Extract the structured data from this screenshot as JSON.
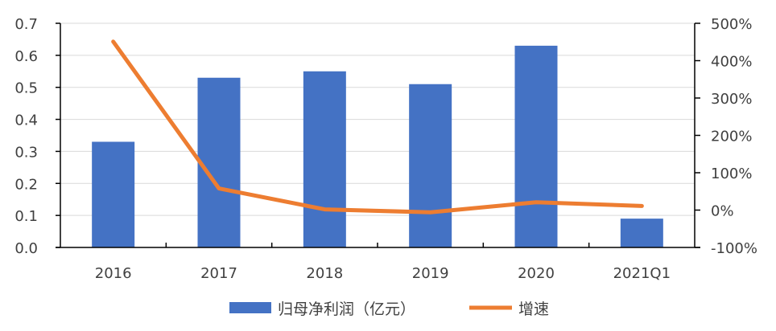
{
  "chart_data": {
    "type": "bar+line",
    "title": "",
    "categories": [
      "2016",
      "2017",
      "2018",
      "2019",
      "2020",
      "2021Q1"
    ],
    "series": [
      {
        "name": "归母净利润（亿元）",
        "type": "bar",
        "axis": "left",
        "color": "#4472C4",
        "values": [
          0.33,
          0.53,
          0.55,
          0.51,
          0.63,
          0.09
        ]
      },
      {
        "name": "增速",
        "type": "line",
        "axis": "right",
        "color": "#ED7D31",
        "values": [
          451,
          58,
          2,
          -6,
          21,
          11
        ]
      }
    ],
    "left_axis": {
      "min": 0,
      "max": 0.7,
      "ticks": [
        "0.0",
        "0.1",
        "0.2",
        "0.3",
        "0.4",
        "0.5",
        "0.6",
        "0.7"
      ]
    },
    "right_axis": {
      "min": -100,
      "max": 500,
      "unit": "%",
      "ticks": [
        "-100%",
        "0%",
        "100%",
        "200%",
        "300%",
        "400%",
        "500%"
      ]
    },
    "grid": true,
    "legend_position": "bottom"
  }
}
